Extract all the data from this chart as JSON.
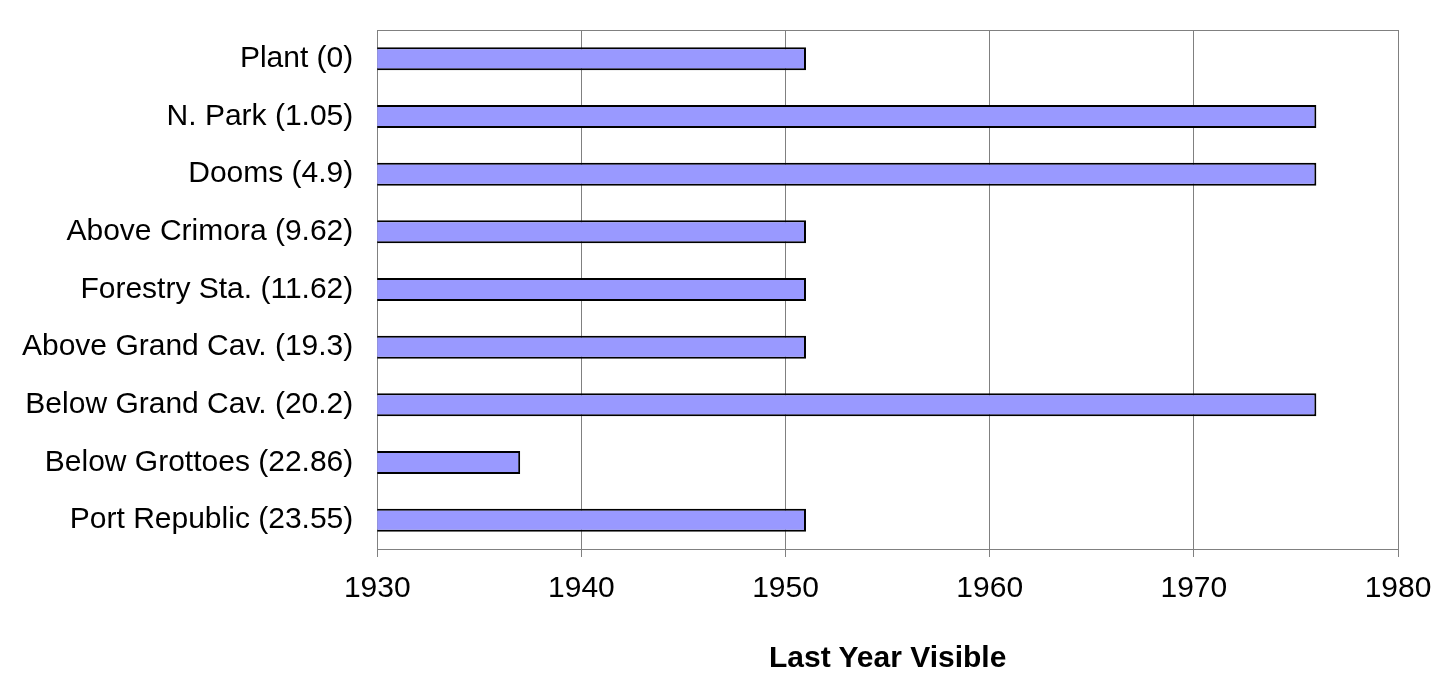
{
  "chart_data": {
    "type": "bar",
    "orientation": "horizontal",
    "categories": [
      "Plant (0)",
      "N. Park (1.05)",
      "Dooms (4.9)",
      "Above Crimora (9.62)",
      "Forestry Sta. (11.62)",
      "Above Grand Cav. (19.3)",
      "Below Grand Cav. (20.2)",
      "Below Grottoes (22.86)",
      "Port Republic (23.55)"
    ],
    "values": [
      1951,
      1976,
      1976,
      1951,
      1951,
      1951,
      1976,
      1937,
      1951
    ],
    "color": "#9999ff",
    "xlabel": "Last Year Visible",
    "xlim": [
      1930,
      1980
    ],
    "xticks": [
      1930,
      1940,
      1950,
      1960,
      1970,
      1980
    ],
    "grid": "x",
    "legend": false
  }
}
